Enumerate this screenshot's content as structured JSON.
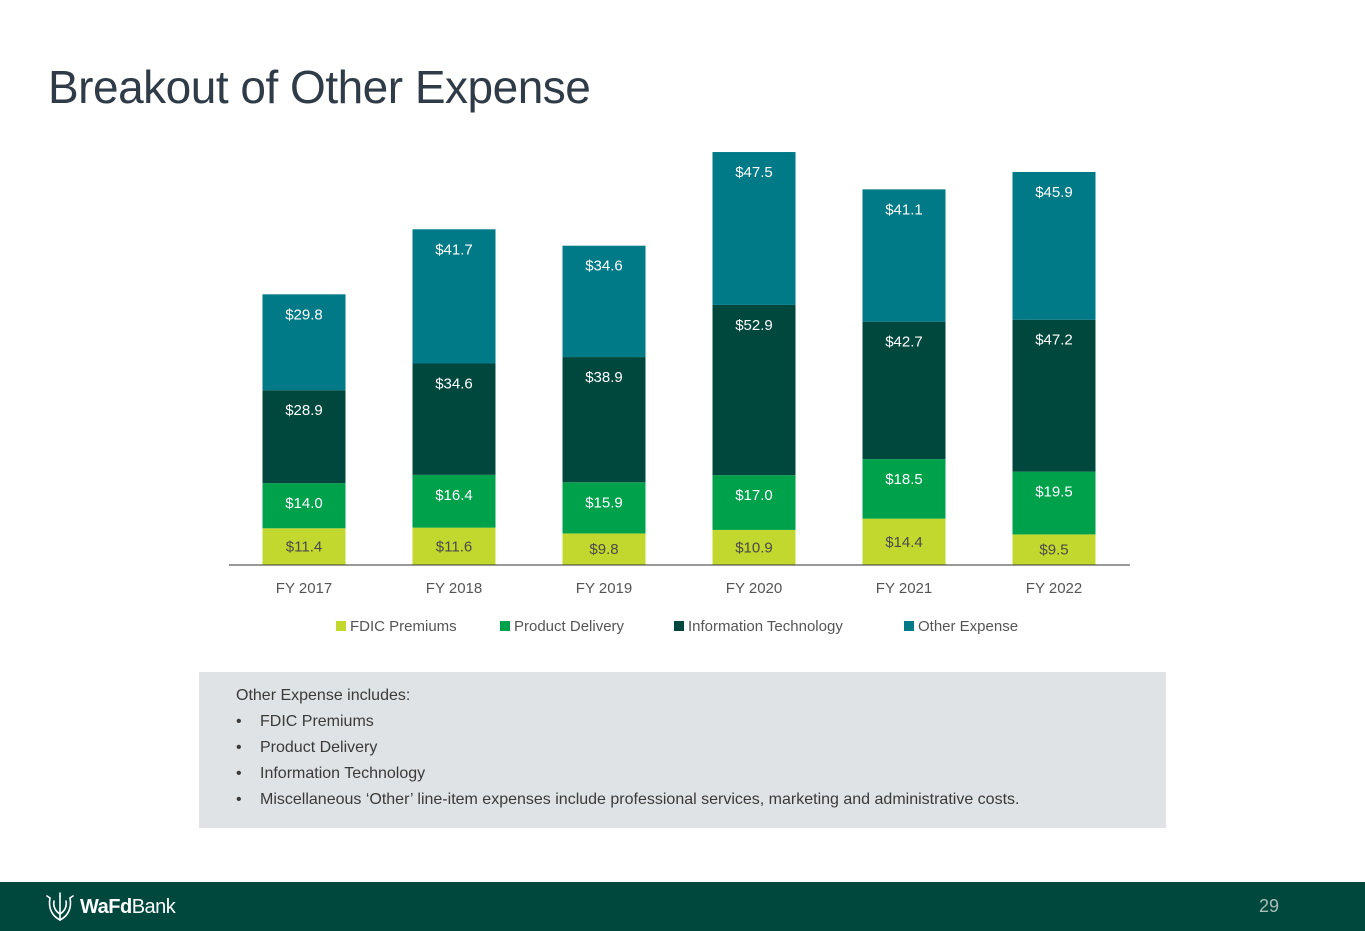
{
  "title": "Breakout of Other Expense",
  "colors": {
    "fdic": "#c3d82e",
    "product": "#00a14b",
    "it": "#00483d",
    "other": "#007a87",
    "footer": "#00483d"
  },
  "chart_data": {
    "type": "bar",
    "stacked": true,
    "categories": [
      "FY 2017",
      "FY 2018",
      "FY 2019",
      "FY 2020",
      "FY 2021",
      "FY 2022"
    ],
    "series": [
      {
        "name": "FDIC Premiums",
        "color_key": "fdic",
        "values": [
          11.4,
          11.6,
          9.8,
          10.9,
          14.4,
          9.5
        ],
        "labels": [
          "$11.4",
          "$11.6",
          "$9.8",
          "$10.9",
          "$14.4",
          "$9.5"
        ],
        "label_color": "#4a4a4a"
      },
      {
        "name": "Product Delivery",
        "color_key": "product",
        "values": [
          14.0,
          16.4,
          15.9,
          17.0,
          18.5,
          19.5
        ],
        "labels": [
          "$14.0",
          "$16.4",
          "$15.9",
          "$17.0",
          "$18.5",
          "$19.5"
        ],
        "label_color": "#ffffff"
      },
      {
        "name": "Information Technology",
        "color_key": "it",
        "values": [
          28.9,
          34.6,
          38.9,
          52.9,
          42.7,
          47.2
        ],
        "labels": [
          "$28.9",
          "$34.6",
          "$38.9",
          "$52.9",
          "$42.7",
          "$47.2"
        ],
        "label_color": "#ffffff"
      },
      {
        "name": "Other Expense",
        "color_key": "other",
        "values": [
          29.8,
          41.7,
          34.6,
          47.5,
          41.1,
          45.9
        ],
        "labels": [
          "$29.8",
          "$41.7",
          "$34.6",
          "$47.5",
          "$41.1",
          "$45.9"
        ],
        "label_color": "#ffffff"
      }
    ],
    "ylim": [
      0,
      128
    ],
    "grid": false,
    "legend_position": "bottom"
  },
  "notes": {
    "heading": "Other Expense includes:",
    "items": [
      "FDIC Premiums",
      "Product Delivery",
      "Information Technology",
      "Miscellaneous ‘Other’ line-item expenses include professional services, marketing and administrative costs."
    ]
  },
  "footer": {
    "logo_bold": "WaFd",
    "logo_regular": "Bank",
    "page_number": "29"
  }
}
